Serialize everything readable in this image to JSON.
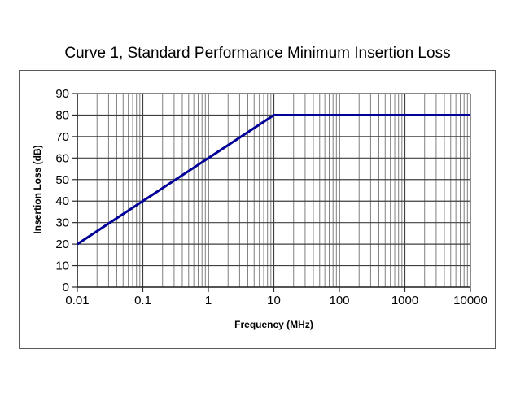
{
  "chart_data": {
    "type": "line",
    "title": "Curve 1, Standard Performance Minimum Insertion Loss",
    "xlabel": "Frequency (MHz)",
    "ylabel": "Insertion Loss (dB)",
    "x_scale": "log",
    "xlim": [
      0.01,
      10000
    ],
    "ylim": [
      0,
      90
    ],
    "x_tick_values": [
      0.01,
      0.1,
      1,
      10,
      100,
      1000,
      10000
    ],
    "x_tick_labels": [
      "0.01",
      "0.1",
      "1",
      "10",
      "100",
      "1000",
      "10000"
    ],
    "y_tick_values": [
      0,
      10,
      20,
      30,
      40,
      50,
      60,
      70,
      80,
      90
    ],
    "y_tick_labels": [
      "0",
      "10",
      "20",
      "30",
      "40",
      "50",
      "60",
      "70",
      "80",
      "90"
    ],
    "grid": {
      "horizontal": "major",
      "vertical": "major-plus-log-minor"
    },
    "legend": "none",
    "series": [
      {
        "name": "Curve 1",
        "color": "#000099",
        "points": [
          [
            0.01,
            20
          ],
          [
            10,
            80
          ],
          [
            10000,
            80
          ]
        ]
      }
    ],
    "colors": {
      "minor_grid": "#808080",
      "major_grid": "#3f3f3f",
      "axis": "#2b2b2b",
      "frame_border": "#5a5a5a",
      "text": "#000000",
      "background": "#ffffff"
    }
  }
}
